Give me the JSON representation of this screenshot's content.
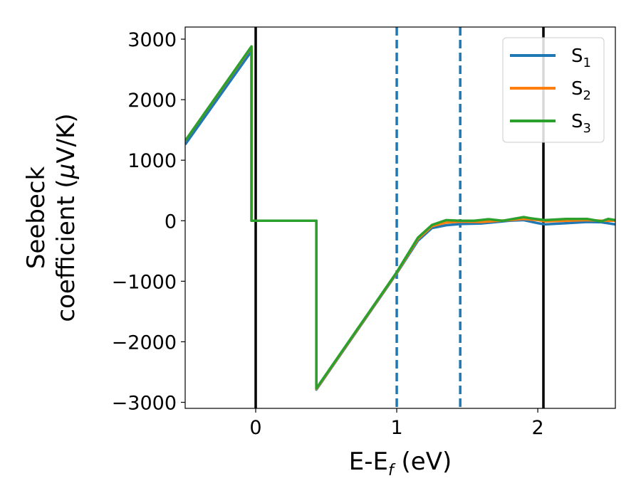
{
  "chart_data": {
    "type": "line",
    "title": "",
    "xlabel": {
      "main": "E-E",
      "sub": "f",
      "tail": " (eV)"
    },
    "ylabel": {
      "line1": "Seebeck",
      "line2_pre": "coefficient  (",
      "line2_mu": "μ",
      "line2_post": "V/K)"
    },
    "xlim": [
      -0.5,
      2.55
    ],
    "ylim": [
      -3100,
      3200
    ],
    "xticks": [
      {
        "value": 0,
        "label": "0"
      },
      {
        "value": 1,
        "label": "1"
      },
      {
        "value": 2,
        "label": "2"
      }
    ],
    "yticks": [
      {
        "value": -3000,
        "label": "−3000"
      },
      {
        "value": -2000,
        "label": "−2000"
      },
      {
        "value": -1000,
        "label": "−1000"
      },
      {
        "value": 0,
        "label": "0"
      },
      {
        "value": 1000,
        "label": "1000"
      },
      {
        "value": 2000,
        "label": "2000"
      },
      {
        "value": 3000,
        "label": "3000"
      }
    ],
    "grid": false,
    "legend_position": "top-right",
    "vlines": [
      {
        "x": 0.0,
        "style": "solid",
        "color": "#000000"
      },
      {
        "x": 1.0,
        "style": "dashed",
        "color": "#1f77b4"
      },
      {
        "x": 1.45,
        "style": "dashed",
        "color": "#1f77b4"
      },
      {
        "x": 2.04,
        "style": "solid",
        "color": "#000000"
      }
    ],
    "series": [
      {
        "name": "S",
        "name_sub": "1",
        "color": "#1f77b4",
        "x": [
          -0.5,
          -0.03,
          -0.03,
          0.43,
          0.43,
          1.0,
          1.15,
          1.25,
          1.35,
          1.45,
          1.6,
          1.8,
          1.9,
          2.0,
          2.05,
          2.2,
          2.35,
          2.45,
          2.55
        ],
        "y": [
          1260,
          2800,
          0,
          0,
          -2790,
          -870,
          -330,
          -120,
          -75,
          -55,
          -45,
          0,
          10,
          -40,
          -60,
          -40,
          -20,
          -25,
          -60
        ]
      },
      {
        "name": "S",
        "name_sub": "2",
        "color": "#ff7f0e",
        "x": [
          -0.5,
          -0.03,
          -0.03,
          0.43,
          0.43,
          1.0,
          1.15,
          1.25,
          1.35,
          1.45,
          1.6,
          1.8,
          1.9,
          2.0,
          2.05,
          2.2,
          2.35,
          2.45,
          2.55
        ],
        "y": [
          1320,
          2870,
          0,
          0,
          -2780,
          -860,
          -300,
          -90,
          -30,
          -15,
          -20,
          10,
          30,
          10,
          -10,
          0,
          10,
          0,
          0
        ]
      },
      {
        "name": "S",
        "name_sub": "3",
        "color": "#2ca02c",
        "x": [
          -0.5,
          -0.03,
          -0.03,
          0.43,
          0.43,
          1.0,
          1.15,
          1.25,
          1.35,
          1.45,
          1.55,
          1.65,
          1.75,
          1.9,
          1.95,
          2.05,
          2.2,
          2.35,
          2.45,
          2.5,
          2.55
        ],
        "y": [
          1320,
          2880,
          0,
          0,
          -2770,
          -850,
          -280,
          -70,
          10,
          0,
          0,
          25,
          0,
          60,
          40,
          10,
          30,
          30,
          -10,
          30,
          10
        ]
      }
    ]
  }
}
